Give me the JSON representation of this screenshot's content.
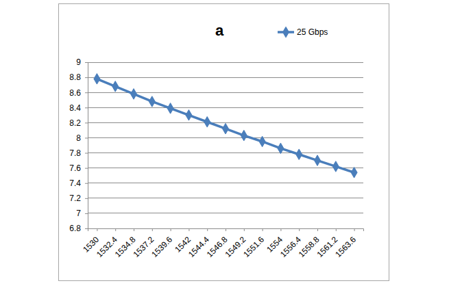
{
  "chart_data": {
    "type": "line",
    "title": "a",
    "categories": [
      "1530",
      "1532.4",
      "1534.8",
      "1537.2",
      "1539.6",
      "1542",
      "1544.4",
      "1546.8",
      "1549.2",
      "1551.6",
      "1554",
      "1556.4",
      "1558.8",
      "1561.2",
      "1563.6"
    ],
    "series": [
      {
        "name": "25 Gbps",
        "color": "#4a7ebb",
        "marker": "diamond",
        "values": [
          8.78,
          8.68,
          8.58,
          8.48,
          8.39,
          8.3,
          8.21,
          8.12,
          8.03,
          7.95,
          7.86,
          7.78,
          7.7,
          7.62,
          7.54
        ]
      }
    ],
    "ylim": [
      6.8,
      9
    ],
    "yticks": [
      6.8,
      7,
      7.2,
      7.4,
      7.6,
      7.8,
      8,
      8.2,
      8.4,
      8.6,
      8.8,
      9
    ],
    "grid": true,
    "legend": "top-right"
  }
}
